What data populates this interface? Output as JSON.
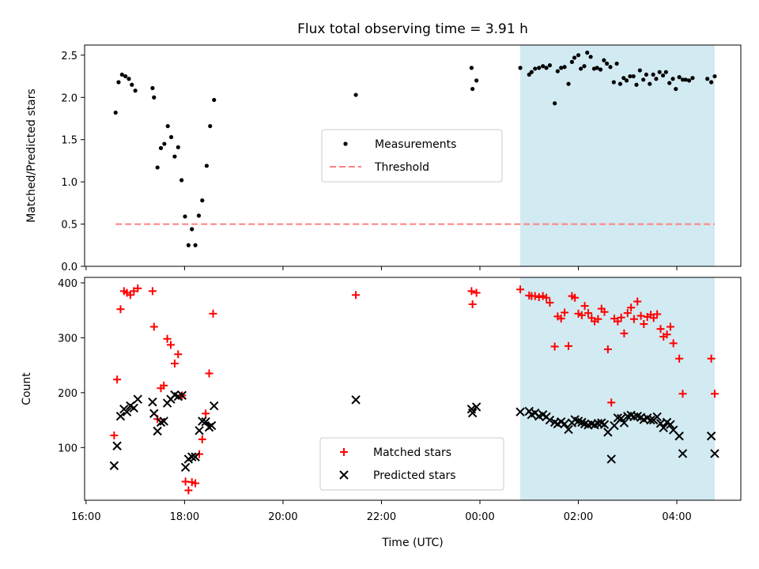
{
  "title": "Flux total observing time = 3.91 h",
  "xlabel": "Time (UTC)",
  "x_tick_labels": [
    "16:00",
    "18:00",
    "20:00",
    "22:00",
    "00:00",
    "02:00",
    "04:00"
  ],
  "colors": {
    "measurement": "#000000",
    "threshold": "#ff8080",
    "matched": "#ff0000",
    "predicted": "#000000",
    "highlight": "#add8e6"
  },
  "chart_data": [
    {
      "type": "scatter",
      "ylabel": "Matched/Predicted stars",
      "ylim": [
        0,
        2.62
      ],
      "xlim_hours": [
        15.97,
        29.3
      ],
      "x_unit": "hours since 16:00 day 1",
      "y_ticks": [
        "0.0",
        "0.5",
        "1.0",
        "1.5",
        "2.0",
        "2.5"
      ],
      "highlight_span_hours": [
        24.82,
        28.77
      ],
      "legend": {
        "placement": "center",
        "entries": [
          "Measurements",
          "Threshold"
        ]
      },
      "threshold": {
        "name": "Threshold",
        "value": 0.5,
        "x_range_hours": [
          16.6,
          28.77
        ]
      },
      "series": [
        {
          "name": "Measurements",
          "points": [
            [
              16.6,
              1.82
            ],
            [
              16.66,
              2.18
            ],
            [
              16.73,
              2.27
            ],
            [
              16.8,
              2.25
            ],
            [
              16.87,
              2.22
            ],
            [
              16.93,
              2.15
            ],
            [
              17.0,
              2.08
            ],
            [
              17.35,
              2.11
            ],
            [
              17.38,
              2.0
            ],
            [
              17.45,
              1.17
            ],
            [
              17.52,
              1.4
            ],
            [
              17.59,
              1.45
            ],
            [
              17.66,
              1.66
            ],
            [
              17.73,
              1.53
            ],
            [
              17.8,
              1.3
            ],
            [
              17.87,
              1.41
            ],
            [
              17.94,
              1.02
            ],
            [
              18.01,
              0.59
            ],
            [
              18.08,
              0.25
            ],
            [
              18.15,
              0.44
            ],
            [
              18.22,
              0.25
            ],
            [
              18.29,
              0.6
            ],
            [
              18.36,
              0.78
            ],
            [
              18.45,
              1.19
            ],
            [
              18.52,
              1.66
            ],
            [
              18.6,
              1.97
            ],
            [
              21.48,
              2.03
            ],
            [
              23.83,
              2.35
            ],
            [
              23.85,
              2.1
            ],
            [
              23.93,
              2.2
            ],
            [
              24.82,
              2.35
            ],
            [
              25.0,
              2.27
            ],
            [
              25.05,
              2.3
            ],
            [
              25.12,
              2.34
            ],
            [
              25.2,
              2.35
            ],
            [
              25.28,
              2.37
            ],
            [
              25.35,
              2.35
            ],
            [
              25.42,
              2.38
            ],
            [
              25.52,
              1.93
            ],
            [
              25.58,
              2.31
            ],
            [
              25.65,
              2.35
            ],
            [
              25.72,
              2.36
            ],
            [
              25.8,
              2.16
            ],
            [
              25.87,
              2.42
            ],
            [
              25.92,
              2.47
            ],
            [
              26.0,
              2.5
            ],
            [
              26.05,
              2.34
            ],
            [
              26.12,
              2.37
            ],
            [
              26.18,
              2.53
            ],
            [
              26.25,
              2.48
            ],
            [
              26.32,
              2.34
            ],
            [
              26.38,
              2.35
            ],
            [
              26.45,
              2.33
            ],
            [
              26.52,
              2.44
            ],
            [
              26.58,
              2.4
            ],
            [
              26.65,
              2.36
            ],
            [
              26.72,
              2.18
            ],
            [
              26.78,
              2.4
            ],
            [
              26.85,
              2.16
            ],
            [
              26.92,
              2.23
            ],
            [
              26.98,
              2.2
            ],
            [
              27.05,
              2.25
            ],
            [
              27.12,
              2.25
            ],
            [
              27.18,
              2.15
            ],
            [
              27.25,
              2.32
            ],
            [
              27.32,
              2.21
            ],
            [
              27.38,
              2.27
            ],
            [
              27.45,
              2.16
            ],
            [
              27.52,
              2.27
            ],
            [
              27.58,
              2.22
            ],
            [
              27.65,
              2.3
            ],
            [
              27.72,
              2.26
            ],
            [
              27.78,
              2.3
            ],
            [
              27.85,
              2.17
            ],
            [
              27.92,
              2.22
            ],
            [
              27.98,
              2.1
            ],
            [
              28.05,
              2.24
            ],
            [
              28.12,
              2.21
            ],
            [
              28.18,
              2.21
            ],
            [
              28.25,
              2.2
            ],
            [
              28.32,
              2.23
            ],
            [
              28.62,
              2.22
            ],
            [
              28.7,
              2.18
            ],
            [
              28.77,
              2.25
            ]
          ]
        }
      ]
    },
    {
      "type": "scatter",
      "ylabel": "Count",
      "xlabel": "Time (UTC)",
      "ylim": [
        4,
        410
      ],
      "xlim_hours": [
        15.97,
        29.3
      ],
      "x_unit": "hours since 16:00 day 1",
      "y_ticks": [
        "100",
        "200",
        "300",
        "400"
      ],
      "highlight_span_hours": [
        24.82,
        28.77
      ],
      "legend": {
        "placement": "lower center",
        "entries": [
          "Matched stars",
          "Predicted stars"
        ]
      },
      "series": [
        {
          "name": "Matched stars",
          "marker": "plus",
          "points": [
            [
              16.57,
              122
            ],
            [
              16.63,
              224
            ],
            [
              16.7,
              352
            ],
            [
              16.77,
              385
            ],
            [
              16.83,
              382
            ],
            [
              16.9,
              378
            ],
            [
              16.97,
              385
            ],
            [
              17.05,
              390
            ],
            [
              17.35,
              385
            ],
            [
              17.38,
              320
            ],
            [
              17.45,
              152
            ],
            [
              17.52,
              208
            ],
            [
              17.58,
              213
            ],
            [
              17.65,
              298
            ],
            [
              17.72,
              287
            ],
            [
              17.8,
              253
            ],
            [
              17.87,
              270
            ],
            [
              17.95,
              195
            ],
            [
              18.02,
              38
            ],
            [
              18.08,
              22
            ],
            [
              18.15,
              37
            ],
            [
              18.22,
              35
            ],
            [
              18.3,
              88
            ],
            [
              18.36,
              115
            ],
            [
              18.43,
              162
            ],
            [
              18.5,
              235
            ],
            [
              18.58,
              344
            ],
            [
              21.48,
              378
            ],
            [
              23.83,
              385
            ],
            [
              23.85,
              361
            ],
            [
              23.93,
              382
            ],
            [
              24.82,
              388
            ],
            [
              25.0,
              377
            ],
            [
              25.05,
              376
            ],
            [
              25.12,
              376
            ],
            [
              25.2,
              374
            ],
            [
              25.28,
              376
            ],
            [
              25.35,
              373
            ],
            [
              25.42,
              364
            ],
            [
              25.52,
              284
            ],
            [
              25.58,
              339
            ],
            [
              25.65,
              335
            ],
            [
              25.72,
              346
            ],
            [
              25.8,
              285
            ],
            [
              25.87,
              376
            ],
            [
              25.93,
              373
            ],
            [
              26.0,
              344
            ],
            [
              26.07,
              341
            ],
            [
              26.13,
              358
            ],
            [
              26.2,
              345
            ],
            [
              26.27,
              336
            ],
            [
              26.33,
              330
            ],
            [
              26.4,
              334
            ],
            [
              26.47,
              353
            ],
            [
              26.53,
              347
            ],
            [
              26.6,
              279
            ],
            [
              26.67,
              182
            ],
            [
              26.73,
              335
            ],
            [
              26.8,
              330
            ],
            [
              26.87,
              337
            ],
            [
              26.93,
              308
            ],
            [
              27.0,
              345
            ],
            [
              27.07,
              355
            ],
            [
              27.13,
              334
            ],
            [
              27.2,
              366
            ],
            [
              27.27,
              340
            ],
            [
              27.33,
              325
            ],
            [
              27.4,
              338
            ],
            [
              27.47,
              342
            ],
            [
              27.53,
              336
            ],
            [
              27.6,
              343
            ],
            [
              27.67,
              316
            ],
            [
              27.73,
              302
            ],
            [
              27.8,
              306
            ],
            [
              27.87,
              320
            ],
            [
              27.93,
              290
            ],
            [
              28.05,
              262
            ],
            [
              28.12,
              198
            ],
            [
              28.7,
              262
            ],
            [
              28.77,
              198
            ]
          ]
        },
        {
          "name": "Predicted stars",
          "marker": "x",
          "points": [
            [
              16.57,
              67
            ],
            [
              16.63,
              103
            ],
            [
              16.7,
              157
            ],
            [
              16.77,
              170
            ],
            [
              16.83,
              165
            ],
            [
              16.9,
              176
            ],
            [
              16.97,
              172
            ],
            [
              17.05,
              188
            ],
            [
              17.35,
              183
            ],
            [
              17.38,
              162
            ],
            [
              17.45,
              130
            ],
            [
              17.52,
              146
            ],
            [
              17.58,
              148
            ],
            [
              17.65,
              181
            ],
            [
              17.72,
              188
            ],
            [
              17.8,
              196
            ],
            [
              17.87,
              193
            ],
            [
              17.95,
              195
            ],
            [
              18.02,
              64
            ],
            [
              18.08,
              79
            ],
            [
              18.15,
              83
            ],
            [
              18.22,
              83
            ],
            [
              18.3,
              131
            ],
            [
              18.36,
              148
            ],
            [
              18.43,
              147
            ],
            [
              18.5,
              137
            ],
            [
              18.55,
              140
            ],
            [
              18.6,
              176
            ],
            [
              21.48,
              187
            ],
            [
              23.83,
              170
            ],
            [
              23.85,
              163
            ],
            [
              23.93,
              174
            ],
            [
              24.82,
              165
            ],
            [
              25.0,
              166
            ],
            [
              25.05,
              160
            ],
            [
              25.12,
              163
            ],
            [
              25.2,
              157
            ],
            [
              25.28,
              160
            ],
            [
              25.35,
              156
            ],
            [
              25.42,
              150
            ],
            [
              25.52,
              146
            ],
            [
              25.58,
              143
            ],
            [
              25.65,
              147
            ],
            [
              25.72,
              143
            ],
            [
              25.8,
              133
            ],
            [
              25.87,
              145
            ],
            [
              25.93,
              151
            ],
            [
              26.0,
              148
            ],
            [
              26.07,
              146
            ],
            [
              26.13,
              143
            ],
            [
              26.2,
              141
            ],
            [
              26.27,
              143
            ],
            [
              26.33,
              141
            ],
            [
              26.4,
              144
            ],
            [
              26.47,
              145
            ],
            [
              26.53,
              142
            ],
            [
              26.6,
              128
            ],
            [
              26.67,
              79
            ],
            [
              26.73,
              140
            ],
            [
              26.8,
              154
            ],
            [
              26.87,
              153
            ],
            [
              26.93,
              145
            ],
            [
              27.0,
              157
            ],
            [
              27.07,
              159
            ],
            [
              27.13,
              156
            ],
            [
              27.2,
              157
            ],
            [
              27.27,
              155
            ],
            [
              27.33,
              151
            ],
            [
              27.4,
              154
            ],
            [
              27.47,
              150
            ],
            [
              27.53,
              150
            ],
            [
              27.6,
              156
            ],
            [
              27.67,
              144
            ],
            [
              27.73,
              136
            ],
            [
              27.8,
              146
            ],
            [
              27.87,
              142
            ],
            [
              27.93,
              132
            ],
            [
              28.05,
              121
            ],
            [
              28.12,
              89
            ],
            [
              28.7,
              121
            ],
            [
              28.77,
              89
            ]
          ]
        }
      ]
    }
  ]
}
